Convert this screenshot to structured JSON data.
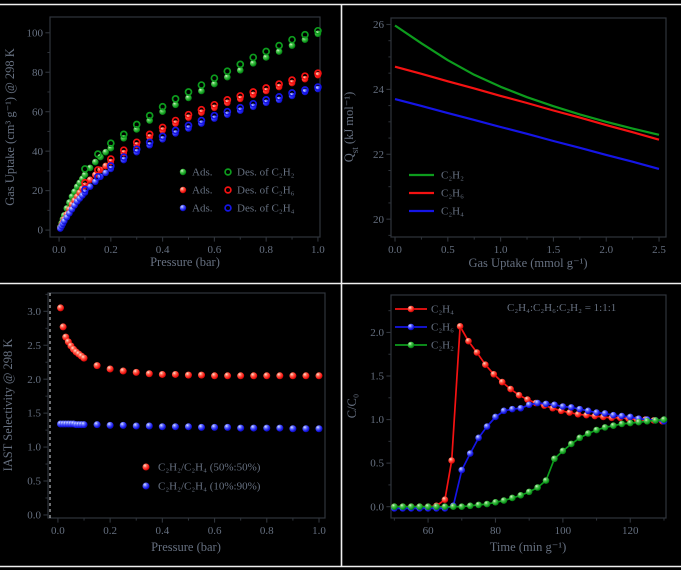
{
  "figure": {
    "background": "#000000",
    "separator_color": "#f0f0f0",
    "frame_color": "#2f343b",
    "text_color": "#667080"
  },
  "palette": {
    "green": "#0d9c1d",
    "red": "#f51212",
    "blue": "#1515e6"
  },
  "chart_data": [
    {
      "id": "a",
      "type": "scatter",
      "xlabel": "Pressure (bar)",
      "ylabel": "Gas Uptake (cm³ g⁻¹) @ 298 K",
      "xlim": [
        0,
        1.0
      ],
      "ylim": [
        0,
        108
      ],
      "xticks": [
        0,
        0.2,
        0.4,
        0.6,
        0.8,
        1.0
      ],
      "xtick_labels": [
        "0.0",
        "0.2",
        "0.4",
        "0.6",
        "0.8",
        "1.0"
      ],
      "yticks": [
        0,
        20,
        40,
        60,
        80,
        100
      ],
      "ytick_labels": [
        "0",
        "20",
        "40",
        "60",
        "80",
        "100"
      ],
      "legend_rows": [
        {
          "color": "green",
          "ads_label": "Ads.",
          "des_label": "Des. of C₂H₂"
        },
        {
          "color": "red",
          "ads_label": "Ads.",
          "des_label": "Des. of C₂H₆"
        },
        {
          "color": "blue",
          "ads_label": "Ads.",
          "des_label": "Des. of C₂H₄"
        }
      ],
      "series": [
        {
          "name": "C₂H₂ adsorption",
          "color": "green",
          "marker": "sphere",
          "x": [
            0.005,
            0.01,
            0.015,
            0.02,
            0.03,
            0.04,
            0.05,
            0.06,
            0.07,
            0.08,
            0.09,
            0.1,
            0.12,
            0.14,
            0.16,
            0.18,
            0.2,
            0.25,
            0.3,
            0.35,
            0.4,
            0.45,
            0.5,
            0.55,
            0.6,
            0.65,
            0.7,
            0.75,
            0.8,
            0.85,
            0.9,
            0.95,
            1.0
          ],
          "y": [
            1.5,
            3.5,
            5.5,
            7.5,
            11,
            14,
            17,
            19.5,
            22,
            24,
            26,
            28,
            31.5,
            34.5,
            37,
            39.5,
            41.5,
            46.5,
            51,
            55.5,
            60,
            63.5,
            67,
            70.5,
            74,
            77.5,
            81,
            84.5,
            87.5,
            90.5,
            93.5,
            96.5,
            99.5
          ]
        },
        {
          "name": "C₂H₆ adsorption",
          "color": "red",
          "marker": "sphere",
          "x": [
            0.005,
            0.01,
            0.015,
            0.02,
            0.03,
            0.04,
            0.05,
            0.06,
            0.07,
            0.08,
            0.09,
            0.1,
            0.12,
            0.14,
            0.16,
            0.18,
            0.2,
            0.25,
            0.3,
            0.35,
            0.4,
            0.45,
            0.5,
            0.55,
            0.6,
            0.65,
            0.7,
            0.75,
            0.8,
            0.85,
            0.9,
            0.95,
            1.0
          ],
          "y": [
            1,
            2.5,
            4,
            5.5,
            8,
            10.5,
            13,
            15,
            17,
            19,
            21,
            22.5,
            25.5,
            28,
            30.5,
            32.5,
            34.5,
            39,
            43,
            47,
            50.5,
            54,
            57,
            59.5,
            62,
            64.5,
            66.5,
            68.5,
            70.5,
            72.5,
            74.5,
            76.5,
            78.5
          ]
        },
        {
          "name": "C₂H₄ adsorption",
          "color": "blue",
          "marker": "sphere",
          "x": [
            0.005,
            0.01,
            0.015,
            0.02,
            0.03,
            0.04,
            0.05,
            0.06,
            0.07,
            0.08,
            0.09,
            0.1,
            0.12,
            0.14,
            0.16,
            0.18,
            0.2,
            0.25,
            0.3,
            0.35,
            0.4,
            0.45,
            0.5,
            0.55,
            0.6,
            0.65,
            0.7,
            0.75,
            0.8,
            0.85,
            0.9,
            0.95,
            1.0
          ],
          "y": [
            0.8,
            2,
            3.2,
            4.5,
            6.5,
            8.5,
            10.5,
            12.5,
            14.5,
            16,
            17.5,
            19,
            22,
            24.5,
            27,
            29,
            31,
            35.5,
            39.5,
            43,
            46,
            49,
            51.5,
            54,
            56.5,
            58.5,
            60.5,
            62.5,
            64.5,
            66,
            68,
            70,
            71.5
          ]
        },
        {
          "name": "C₂H₂ desorption",
          "color": "green",
          "marker": "open",
          "x": [
            1.0,
            0.95,
            0.9,
            0.85,
            0.8,
            0.75,
            0.7,
            0.65,
            0.6,
            0.55,
            0.5,
            0.45,
            0.4,
            0.35,
            0.3,
            0.25,
            0.2,
            0.15,
            0.1
          ],
          "y": [
            101,
            99,
            96.5,
            93.5,
            90.5,
            87.5,
            84,
            80.5,
            77,
            73.5,
            70,
            66.5,
            62.5,
            58,
            53.5,
            48.5,
            44,
            38.5,
            31
          ]
        },
        {
          "name": "C₂H₆ desorption",
          "color": "red",
          "marker": "open",
          "x": [
            1.0,
            0.95,
            0.9,
            0.85,
            0.8,
            0.75,
            0.7,
            0.65,
            0.6,
            0.55,
            0.5,
            0.45,
            0.4,
            0.35,
            0.3,
            0.25,
            0.2,
            0.15,
            0.1
          ],
          "y": [
            79.5,
            78,
            76,
            74,
            72,
            70,
            68,
            66,
            63.5,
            61,
            58.5,
            55.5,
            52,
            48.5,
            44.5,
            40.5,
            36,
            30.5,
            24
          ]
        },
        {
          "name": "C₂H₄ desorption",
          "color": "blue",
          "marker": "open",
          "x": [
            1.0,
            0.95,
            0.9,
            0.85,
            0.8,
            0.75,
            0.7,
            0.65,
            0.6,
            0.55,
            0.5,
            0.45,
            0.4,
            0.35,
            0.3,
            0.25,
            0.2,
            0.15,
            0.1
          ],
          "y": [
            72.5,
            71,
            69.5,
            67.5,
            66,
            64,
            62,
            60,
            58,
            55.5,
            53,
            50.5,
            47.5,
            44.5,
            41,
            37,
            32.5,
            27,
            20.5
          ]
        }
      ]
    },
    {
      "id": "b",
      "type": "line",
      "xlabel": "Gas Uptake (mmol g⁻¹)",
      "ylabel": "Q_{st} (kJ mol⁻¹)",
      "xlim": [
        0,
        2.5
      ],
      "ylim": [
        20,
        26
      ],
      "xticks": [
        0,
        0.5,
        1.0,
        1.5,
        2.0,
        2.5
      ],
      "xtick_labels": [
        "0.0",
        "0.5",
        "1.0",
        "1.5",
        "2.0",
        "2.5"
      ],
      "yticks": [
        20,
        22,
        24,
        26
      ],
      "ytick_labels": [
        "20",
        "22",
        "24",
        "26"
      ],
      "legend": [
        {
          "color": "green",
          "label": "C₂H₂"
        },
        {
          "color": "red",
          "label": "C₂H₆"
        },
        {
          "color": "blue",
          "label": "C₂H₄"
        }
      ],
      "series": [
        {
          "name": "C₂H₂",
          "color": "green",
          "x": [
            0,
            0.25,
            0.5,
            0.75,
            1.0,
            1.25,
            1.5,
            1.75,
            2.0,
            2.25,
            2.5
          ],
          "y": [
            25.97,
            25.42,
            24.9,
            24.45,
            24.08,
            23.76,
            23.48,
            23.23,
            23.0,
            22.79,
            22.6
          ]
        },
        {
          "name": "C₂H₆",
          "color": "red",
          "x": [
            0,
            0.25,
            0.5,
            0.75,
            1.0,
            1.25,
            1.5,
            1.75,
            2.0,
            2.25,
            2.5
          ],
          "y": [
            24.7,
            24.48,
            24.25,
            24.03,
            23.8,
            23.58,
            23.35,
            23.13,
            22.9,
            22.68,
            22.45
          ]
        },
        {
          "name": "C₂H₄",
          "color": "blue",
          "x": [
            0,
            0.25,
            0.5,
            0.75,
            1.0,
            1.25,
            1.5,
            1.75,
            2.0,
            2.25,
            2.5
          ],
          "y": [
            23.7,
            23.49,
            23.27,
            23.06,
            22.84,
            22.63,
            22.41,
            22.2,
            21.98,
            21.77,
            21.55
          ]
        }
      ]
    },
    {
      "id": "c",
      "type": "scatter",
      "xlabel": "Pressure (bar)",
      "ylabel": "IAST Selectivity @ 298 K",
      "xlim": [
        0,
        1.0
      ],
      "ylim": [
        0,
        3.27
      ],
      "xticks": [
        0,
        0.2,
        0.4,
        0.6,
        0.8,
        1.0
      ],
      "xtick_labels": [
        "0.0",
        "0.2",
        "0.4",
        "0.6",
        "0.8",
        "1.0"
      ],
      "yticks": [
        0,
        0.5,
        1.0,
        1.5,
        2.0,
        2.5,
        3.0
      ],
      "ytick_labels": [
        "0.0",
        "0.5",
        "1.0",
        "1.5",
        "2.0",
        "2.5",
        "3.0"
      ],
      "legend": [
        {
          "color": "red",
          "label": "C₂H₂/C₂H₄ (50%:50%)"
        },
        {
          "color": "blue",
          "label": "C₂H₂/C₂H₄ (10%:90%)"
        }
      ],
      "series": [
        {
          "name": "C₂H₂/C₂H₄ (50%:50%)",
          "color": "red",
          "marker": "sphere",
          "x": [
            0.01,
            0.02,
            0.03,
            0.04,
            0.05,
            0.06,
            0.07,
            0.08,
            0.09,
            0.1,
            0.15,
            0.2,
            0.25,
            0.3,
            0.35,
            0.4,
            0.45,
            0.5,
            0.55,
            0.6,
            0.65,
            0.7,
            0.75,
            0.8,
            0.85,
            0.9,
            0.95,
            1.0
          ],
          "y": [
            3.05,
            2.77,
            2.62,
            2.55,
            2.49,
            2.44,
            2.4,
            2.37,
            2.34,
            2.31,
            2.2,
            2.15,
            2.12,
            2.1,
            2.08,
            2.07,
            2.07,
            2.06,
            2.06,
            2.05,
            2.05,
            2.05,
            2.05,
            2.05,
            2.05,
            2.05,
            2.05,
            2.05
          ]
        },
        {
          "name": "C₂H₂/C₂H₄ (10%:90%)",
          "color": "blue",
          "marker": "sphere",
          "x": [
            0.01,
            0.02,
            0.03,
            0.04,
            0.05,
            0.06,
            0.07,
            0.08,
            0.09,
            0.1,
            0.15,
            0.2,
            0.25,
            0.3,
            0.35,
            0.4,
            0.45,
            0.5,
            0.55,
            0.6,
            0.65,
            0.7,
            0.75,
            0.8,
            0.85,
            0.9,
            0.95,
            1.0
          ],
          "y": [
            1.34,
            1.34,
            1.34,
            1.34,
            1.34,
            1.34,
            1.33,
            1.33,
            1.33,
            1.33,
            1.33,
            1.32,
            1.32,
            1.31,
            1.31,
            1.3,
            1.3,
            1.3,
            1.29,
            1.29,
            1.29,
            1.28,
            1.28,
            1.28,
            1.28,
            1.27,
            1.27,
            1.27
          ]
        }
      ]
    },
    {
      "id": "d",
      "type": "line",
      "xlabel": "Time (min g⁻¹)",
      "ylabel": "C/C₀",
      "annotation": "C₂H₄:C₂H₆:C₂H₂ = 1:1:1",
      "xlim": [
        50,
        130
      ],
      "ylim": [
        0,
        2.43
      ],
      "xticks": [
        60,
        80,
        100,
        120
      ],
      "xtick_labels": [
        "60",
        "80",
        "100",
        "120"
      ],
      "yticks": [
        0,
        0.5,
        1.0,
        1.5,
        2.0
      ],
      "ytick_labels": [
        "0.0",
        "0.5",
        "1.0",
        "1.5",
        "2.0"
      ],
      "legend": [
        {
          "color": "red",
          "label": "C₂H₄"
        },
        {
          "color": "blue",
          "label": "C₂H₆"
        },
        {
          "color": "green",
          "label": "C₂H₂"
        }
      ],
      "series": [
        {
          "name": "C₂H₄",
          "color": "red",
          "marker": "sphere",
          "x": [
            50,
            52.5,
            55,
            57.5,
            60,
            62.5,
            65,
            67,
            69.5,
            72,
            74.5,
            77,
            79.5,
            82,
            84.5,
            87,
            89.5,
            92,
            94.5,
            97,
            99.5,
            102,
            104.5,
            107,
            109.5,
            112,
            114.5,
            117,
            119.5,
            122,
            124.5,
            127,
            129.5
          ],
          "y": [
            0,
            0,
            0,
            0,
            0,
            0.01,
            0.08,
            0.53,
            2.07,
            1.9,
            1.77,
            1.63,
            1.52,
            1.43,
            1.35,
            1.28,
            1.23,
            1.19,
            1.16,
            1.13,
            1.1,
            1.08,
            1.06,
            1.05,
            1.04,
            1.03,
            1.02,
            1.02,
            1.01,
            1,
            1,
            0.99,
            0.98
          ]
        },
        {
          "name": "C₂H₆",
          "color": "blue",
          "marker": "sphere",
          "x": [
            50,
            52.5,
            55,
            57.5,
            60,
            62.5,
            65,
            67.5,
            70,
            72.5,
            75,
            77.5,
            80,
            82.5,
            85,
            87.5,
            90,
            92.5,
            95,
            97.5,
            100,
            102.5,
            105,
            107.5,
            110,
            112.5,
            115,
            117.5,
            120,
            122.5,
            125,
            127.5,
            130
          ],
          "y": [
            -0.02,
            -0.02,
            -0.02,
            -0.02,
            -0.02,
            -0.02,
            -0.02,
            0.01,
            0.42,
            0.61,
            0.79,
            0.92,
            1.03,
            1.1,
            1.12,
            1.13,
            1.17,
            1.19,
            1.18,
            1.17,
            1.15,
            1.14,
            1.12,
            1.1,
            1.08,
            1.07,
            1.05,
            1.04,
            1.03,
            1.01,
            1.0,
            0.99,
            0.98
          ]
        },
        {
          "name": "C₂H₂",
          "color": "green",
          "marker": "sphere",
          "x": [
            50,
            52.5,
            55,
            57.5,
            60,
            62.5,
            65,
            67.5,
            70,
            72.5,
            75,
            77.5,
            80,
            82.5,
            85,
            87.5,
            90,
            92.5,
            95,
            97.5,
            100,
            102.5,
            105,
            107.5,
            110,
            112.5,
            115,
            117.5,
            120,
            122.5,
            125,
            127.5,
            130
          ],
          "y": [
            0,
            0,
            0,
            0,
            0,
            0,
            0,
            0,
            0,
            0.01,
            0.02,
            0.03,
            0.05,
            0.07,
            0.1,
            0.13,
            0.17,
            0.22,
            0.3,
            0.55,
            0.64,
            0.72,
            0.79,
            0.84,
            0.88,
            0.91,
            0.93,
            0.95,
            0.96,
            0.97,
            0.98,
            0.99,
            1.0
          ]
        }
      ]
    }
  ]
}
